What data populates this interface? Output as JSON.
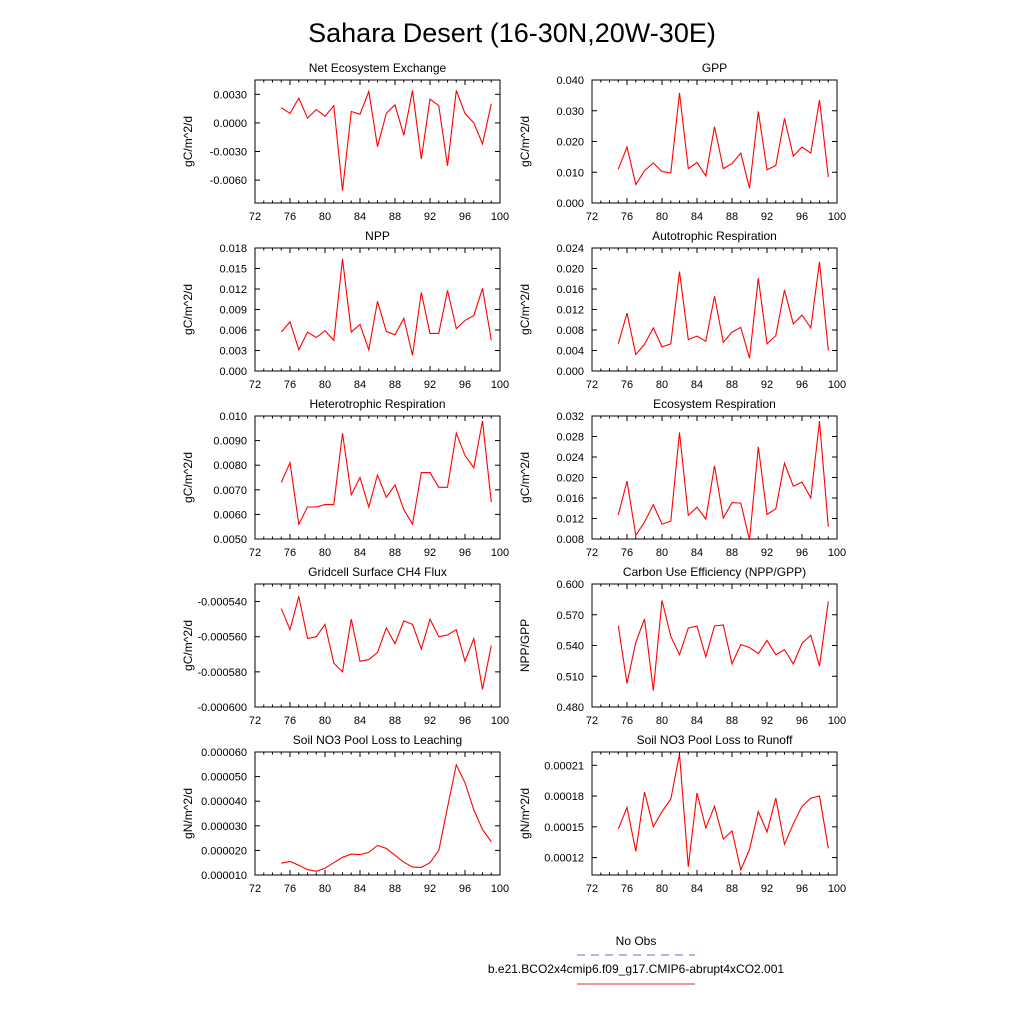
{
  "title": "Sahara Desert (16-30N,20W-30E)",
  "legend": {
    "entries": [
      {
        "label": "No Obs",
        "color": "#6b6bd8",
        "style": "dashed"
      },
      {
        "label": "b.e21.BCO2x4cmip6.f09_g17.CMIP6-abrupt4xCO2.001",
        "color": "#e03030",
        "style": "solid"
      }
    ]
  },
  "colors": {
    "series": "#ff0000"
  },
  "chart_data": [
    {
      "type": "line",
      "title": "Net Ecosystem Exchange",
      "ylabel": "gC/m^2/d",
      "xlim": [
        72,
        100
      ],
      "ylim": [
        -0.0084,
        0.0045
      ],
      "xticks": [
        72,
        76,
        80,
        84,
        88,
        92,
        96,
        100
      ],
      "yticks": [
        -0.006,
        -0.003,
        0.0,
        0.003
      ],
      "yticklabels": [
        "-0.0060",
        "-0.0030",
        "0.0000",
        "0.0030"
      ],
      "x": [
        75,
        76,
        77,
        78,
        79,
        80,
        81,
        82,
        83,
        84,
        85,
        86,
        87,
        88,
        89,
        90,
        91,
        92,
        93,
        94,
        95,
        96,
        97,
        98,
        99
      ],
      "y": [
        0.0016,
        0.001,
        0.0026,
        0.0005,
        0.0014,
        0.0007,
        0.0018,
        -0.0071,
        0.0012,
        0.0009,
        0.0033,
        -0.0025,
        0.001,
        0.0019,
        -0.0013,
        0.0034,
        -0.0038,
        0.0025,
        0.0018,
        -0.0045,
        0.0034,
        0.001,
        0.0,
        -0.0022,
        0.002
      ]
    },
    {
      "type": "line",
      "title": "GPP",
      "ylabel": "gC/m^2/d",
      "xlim": [
        72,
        100
      ],
      "ylim": [
        0.0,
        0.04
      ],
      "xticks": [
        72,
        76,
        80,
        84,
        88,
        92,
        96,
        100
      ],
      "yticks": [
        0.0,
        0.01,
        0.02,
        0.03,
        0.04
      ],
      "yticklabels": [
        "0.000",
        "0.010",
        "0.020",
        "0.030",
        "0.040"
      ],
      "x": [
        75,
        76,
        77,
        78,
        79,
        80,
        81,
        82,
        83,
        84,
        85,
        86,
        87,
        88,
        89,
        90,
        91,
        92,
        93,
        94,
        95,
        96,
        97,
        98,
        99
      ],
      "y": [
        0.011,
        0.0182,
        0.006,
        0.0105,
        0.013,
        0.0102,
        0.0098,
        0.0358,
        0.0112,
        0.0132,
        0.0088,
        0.0248,
        0.0112,
        0.0128,
        0.0162,
        0.0048,
        0.0298,
        0.0108,
        0.0122,
        0.0275,
        0.0152,
        0.0182,
        0.0162,
        0.0335,
        0.0085
      ]
    },
    {
      "type": "line",
      "title": "NPP",
      "ylabel": "gC/m^2/d",
      "xlim": [
        72,
        100
      ],
      "ylim": [
        0.0,
        0.018
      ],
      "xticks": [
        72,
        76,
        80,
        84,
        88,
        92,
        96,
        100
      ],
      "yticks": [
        0.0,
        0.003,
        0.006,
        0.009,
        0.012,
        0.015,
        0.018
      ],
      "yticklabels": [
        "0.000",
        "0.003",
        "0.006",
        "0.009",
        "0.012",
        "0.015",
        "0.018"
      ],
      "x": [
        75,
        76,
        77,
        78,
        79,
        80,
        81,
        82,
        83,
        84,
        85,
        86,
        87,
        88,
        89,
        90,
        91,
        92,
        93,
        94,
        95,
        96,
        97,
        98,
        99
      ],
      "y": [
        0.0057,
        0.0072,
        0.0031,
        0.0057,
        0.0049,
        0.0059,
        0.0045,
        0.0164,
        0.0057,
        0.0068,
        0.0031,
        0.0102,
        0.0058,
        0.0053,
        0.0077,
        0.0023,
        0.0115,
        0.0055,
        0.0055,
        0.0118,
        0.0062,
        0.0074,
        0.0081,
        0.0121,
        0.0045
      ]
    },
    {
      "type": "line",
      "title": "Autotrophic Respiration",
      "ylabel": "gC/m^2/d",
      "xlim": [
        72,
        100
      ],
      "ylim": [
        0.0,
        0.024
      ],
      "xticks": [
        72,
        76,
        80,
        84,
        88,
        92,
        96,
        100
      ],
      "yticks": [
        0.0,
        0.004,
        0.008,
        0.012,
        0.016,
        0.02,
        0.024
      ],
      "yticklabels": [
        "0.000",
        "0.004",
        "0.008",
        "0.012",
        "0.016",
        "0.020",
        "0.024"
      ],
      "x": [
        75,
        76,
        77,
        78,
        79,
        80,
        81,
        82,
        83,
        84,
        85,
        86,
        87,
        88,
        89,
        90,
        91,
        92,
        93,
        94,
        95,
        96,
        97,
        98,
        99
      ],
      "y": [
        0.0053,
        0.0113,
        0.0032,
        0.0052,
        0.0084,
        0.0047,
        0.0053,
        0.0194,
        0.0061,
        0.0068,
        0.0058,
        0.0146,
        0.0056,
        0.0076,
        0.0085,
        0.0025,
        0.0181,
        0.0053,
        0.0069,
        0.0158,
        0.0092,
        0.0109,
        0.0084,
        0.0213,
        0.004
      ]
    },
    {
      "type": "line",
      "title": "Heterotrophic Respiration",
      "ylabel": "gC/m^2/d",
      "xlim": [
        72,
        100
      ],
      "ylim": [
        0.005,
        0.01
      ],
      "xticks": [
        72,
        76,
        80,
        84,
        88,
        92,
        96,
        100
      ],
      "yticks": [
        0.005,
        0.006,
        0.007,
        0.008,
        0.009,
        0.01
      ],
      "yticklabels": [
        "0.0050",
        "0.0060",
        "0.0070",
        "0.0080",
        "0.0090",
        "0.010"
      ],
      "x": [
        75,
        76,
        77,
        78,
        79,
        80,
        81,
        82,
        83,
        84,
        85,
        86,
        87,
        88,
        89,
        90,
        91,
        92,
        93,
        94,
        95,
        96,
        97,
        98,
        99
      ],
      "y": [
        0.0073,
        0.0081,
        0.0056,
        0.0063,
        0.0063,
        0.0064,
        0.0064,
        0.0093,
        0.0068,
        0.0075,
        0.0063,
        0.0076,
        0.0067,
        0.0072,
        0.0062,
        0.0056,
        0.0077,
        0.0077,
        0.0071,
        0.0071,
        0.0093,
        0.0084,
        0.0079,
        0.0098,
        0.0065
      ]
    },
    {
      "type": "line",
      "title": "Ecosystem Respiration",
      "ylabel": "gC/m^2/d",
      "xlim": [
        72,
        100
      ],
      "ylim": [
        0.008,
        0.032
      ],
      "xticks": [
        72,
        76,
        80,
        84,
        88,
        92,
        96,
        100
      ],
      "yticks": [
        0.008,
        0.012,
        0.016,
        0.02,
        0.024,
        0.028,
        0.032
      ],
      "yticklabels": [
        "0.008",
        "0.012",
        "0.016",
        "0.020",
        "0.024",
        "0.028",
        "0.032"
      ],
      "x": [
        75,
        76,
        77,
        78,
        79,
        80,
        81,
        82,
        83,
        84,
        85,
        86,
        87,
        88,
        89,
        90,
        91,
        92,
        93,
        94,
        95,
        96,
        97,
        98,
        99
      ],
      "y": [
        0.0127,
        0.0193,
        0.0087,
        0.0113,
        0.0147,
        0.0109,
        0.0115,
        0.0288,
        0.0126,
        0.0142,
        0.0119,
        0.0223,
        0.0121,
        0.0151,
        0.015,
        0.0078,
        0.026,
        0.0128,
        0.0139,
        0.0228,
        0.0183,
        0.0191,
        0.016,
        0.031,
        0.0104
      ]
    },
    {
      "type": "line",
      "title": "Gridcell Surface CH4 Flux",
      "ylabel": "gC/m^2/d",
      "xlim": [
        72,
        100
      ],
      "ylim": [
        -0.0006,
        -0.00053
      ],
      "xticks": [
        72,
        76,
        80,
        84,
        88,
        92,
        96,
        100
      ],
      "yticks": [
        -0.0006,
        -0.00058,
        -0.00056,
        -0.00054
      ],
      "yticklabels": [
        "-0.000600",
        "-0.000580",
        "-0.000560",
        "-0.000540"
      ],
      "x": [
        75,
        76,
        77,
        78,
        79,
        80,
        81,
        82,
        83,
        84,
        85,
        86,
        87,
        88,
        89,
        90,
        91,
        92,
        93,
        94,
        95,
        96,
        97,
        98,
        99
      ],
      "y": [
        -0.000544,
        -0.000556,
        -0.000537,
        -0.000561,
        -0.00056,
        -0.000553,
        -0.000575,
        -0.00058,
        -0.00055,
        -0.000574,
        -0.000573,
        -0.000569,
        -0.000555,
        -0.000564,
        -0.000551,
        -0.000553,
        -0.000567,
        -0.00055,
        -0.00056,
        -0.000559,
        -0.000556,
        -0.000574,
        -0.000561,
        -0.00059,
        -0.000565
      ]
    },
    {
      "type": "line",
      "title": "Carbon Use Efficiency (NPP/GPP)",
      "ylabel": "NPP/GPP",
      "xlim": [
        72,
        100
      ],
      "ylim": [
        0.48,
        0.6
      ],
      "xticks": [
        72,
        76,
        80,
        84,
        88,
        92,
        96,
        100
      ],
      "yticks": [
        0.48,
        0.51,
        0.54,
        0.57,
        0.6
      ],
      "yticklabels": [
        "0.480",
        "0.510",
        "0.540",
        "0.570",
        "0.600"
      ],
      "x": [
        75,
        76,
        77,
        78,
        79,
        80,
        81,
        82,
        83,
        84,
        85,
        86,
        87,
        88,
        89,
        90,
        91,
        92,
        93,
        94,
        95,
        96,
        97,
        98,
        99
      ],
      "y": [
        0.559,
        0.503,
        0.543,
        0.566,
        0.496,
        0.584,
        0.549,
        0.531,
        0.557,
        0.559,
        0.529,
        0.559,
        0.56,
        0.522,
        0.541,
        0.538,
        0.532,
        0.545,
        0.531,
        0.536,
        0.522,
        0.542,
        0.55,
        0.52,
        0.583
      ]
    },
    {
      "type": "line",
      "title": "Soil NO3 Pool Loss to Leaching",
      "ylabel": "gN/m^2/d",
      "xlim": [
        72,
        100
      ],
      "ylim": [
        1e-05,
        6e-05
      ],
      "xticks": [
        72,
        76,
        80,
        84,
        88,
        92,
        96,
        100
      ],
      "yticks": [
        1e-05,
        2e-05,
        3e-05,
        4e-05,
        5e-05,
        6e-05
      ],
      "yticklabels": [
        "0.000010",
        "0.000020",
        "0.000030",
        "0.000040",
        "0.000050",
        "0.000060"
      ],
      "x": [
        75,
        76,
        77,
        78,
        79,
        80,
        81,
        82,
        83,
        84,
        85,
        86,
        87,
        88,
        89,
        90,
        91,
        92,
        93,
        94,
        95,
        96,
        97,
        98,
        99
      ],
      "y": [
        1.48e-05,
        1.55e-05,
        1.4e-05,
        1.22e-05,
        1.15e-05,
        1.28e-05,
        1.5e-05,
        1.72e-05,
        1.85e-05,
        1.83e-05,
        1.92e-05,
        2.2e-05,
        2.08e-05,
        1.8e-05,
        1.52e-05,
        1.32e-05,
        1.31e-05,
        1.5e-05,
        2e-05,
        3.75e-05,
        5.48e-05,
        4.75e-05,
        3.65e-05,
        2.85e-05,
        2.35e-05
      ]
    },
    {
      "type": "line",
      "title": "Soil NO3 Pool Loss to Runoff",
      "ylabel": "gN/m^2/d",
      "xlim": [
        72,
        100
      ],
      "ylim": [
        0.000103,
        0.000223
      ],
      "xticks": [
        72,
        76,
        80,
        84,
        88,
        92,
        96,
        100
      ],
      "yticks": [
        0.00012,
        0.00015,
        0.00018,
        0.00021
      ],
      "yticklabels": [
        "0.00012",
        "0.00015",
        "0.00018",
        "0.00021"
      ],
      "x": [
        75,
        76,
        77,
        78,
        79,
        80,
        81,
        82,
        83,
        84,
        85,
        86,
        87,
        88,
        89,
        90,
        91,
        92,
        93,
        94,
        95,
        96,
        97,
        98,
        99
      ],
      "y": [
        0.000148,
        0.000169,
        0.000126,
        0.000184,
        0.00015,
        0.000165,
        0.000177,
        0.000221,
        0.000111,
        0.000183,
        0.000149,
        0.00017,
        0.000138,
        0.000146,
        0.000108,
        0.000128,
        0.000165,
        0.000145,
        0.000178,
        0.000133,
        0.000153,
        0.00017,
        0.000178,
        0.00018,
        0.000129
      ]
    }
  ]
}
